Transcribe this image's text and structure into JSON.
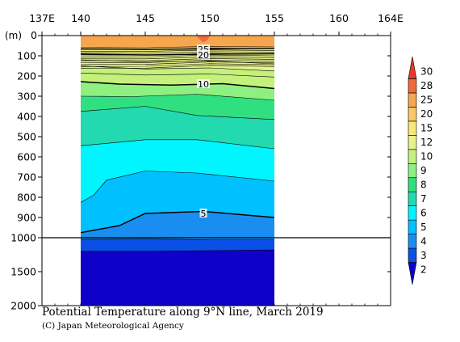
{
  "chart_data": {
    "type": "heatmap",
    "title": "Potential Temperature along 9°N line, March 2019",
    "credit": "(C) Japan Meteorological Agency",
    "x_ticks": [
      "137E",
      "140",
      "145",
      "150",
      "155",
      "160",
      "164E"
    ],
    "x_tick_values": [
      137,
      140,
      145,
      150,
      155,
      160,
      164
    ],
    "xlim": [
      137,
      164
    ],
    "data_xrange": [
      140,
      155
    ],
    "y_unit_label": "(m)",
    "y_ticks_upper": [
      "0",
      "100",
      "200",
      "300",
      "400",
      "500",
      "600",
      "700",
      "800",
      "900",
      "1000"
    ],
    "y_ticks_lower": [
      "1500",
      "2000"
    ],
    "ylim_upper": [
      0,
      1000
    ],
    "ylim_lower": [
      1000,
      2000
    ],
    "colorbar_labels": [
      "2",
      "3",
      "4",
      "5",
      "6",
      "7",
      "8",
      "9",
      "10",
      "12",
      "15",
      "20",
      "25",
      "28",
      "30"
    ],
    "colorbar_colors": [
      "#0e00c8",
      "#0a50e6",
      "#1a8ef0",
      "#00c0ff",
      "#00f5ff",
      "#22d9b0",
      "#30e080",
      "#8ef080",
      "#c4f07c",
      "#e6f28a",
      "#f8e87a",
      "#fac864",
      "#f5a64e",
      "#f06a40",
      "#e8382c"
    ],
    "contour_labels": [
      {
        "text": "25",
        "x": 149.5,
        "depth": 68
      },
      {
        "text": "20",
        "x": 149.5,
        "depth": 95
      },
      {
        "text": "10",
        "x": 149.5,
        "depth": 240
      },
      {
        "text": "5",
        "x": 149.5,
        "depth": 880
      }
    ]
  }
}
